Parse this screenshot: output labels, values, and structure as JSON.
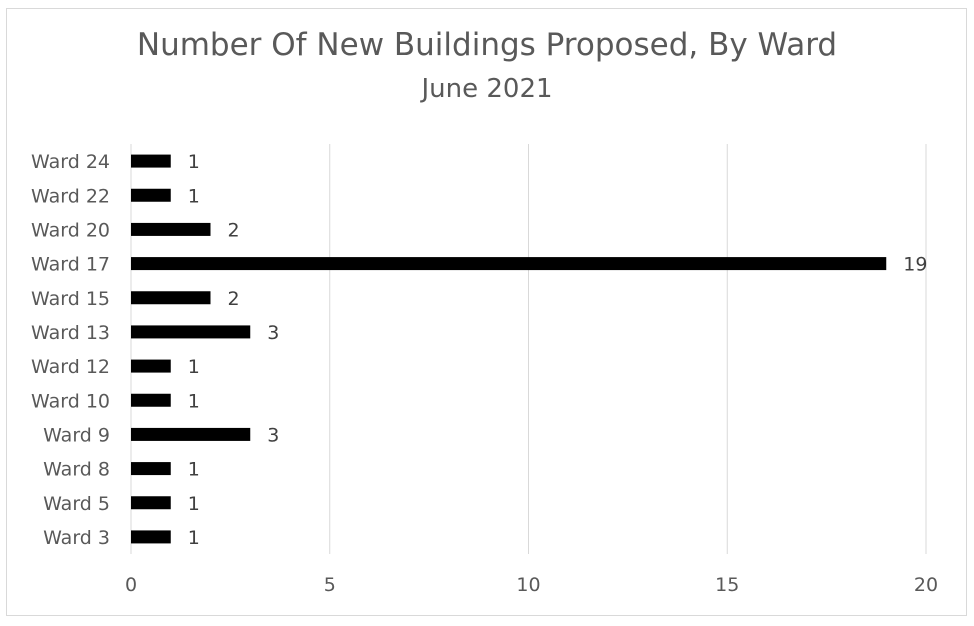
{
  "chart_data": {
    "type": "bar",
    "orientation": "horizontal",
    "title": "Number Of New Buildings Proposed, By Ward",
    "subtitle": "June 2021",
    "categories": [
      "Ward 24",
      "Ward 22",
      "Ward 20",
      "Ward 17",
      "Ward 15",
      "Ward 13",
      "Ward 12",
      "Ward 10",
      "Ward 9",
      "Ward 8",
      "Ward 5",
      "Ward 3"
    ],
    "values": [
      1,
      1,
      2,
      19,
      2,
      3,
      1,
      1,
      3,
      1,
      1,
      1
    ],
    "xlim": [
      0,
      20
    ],
    "xticks": [
      0,
      5,
      10,
      15,
      20
    ],
    "grid": "vertical",
    "legend": "none",
    "data_labels": true,
    "bar_color": "#000000",
    "grid_color": "#d9d9d9",
    "text_color": "#595959"
  }
}
